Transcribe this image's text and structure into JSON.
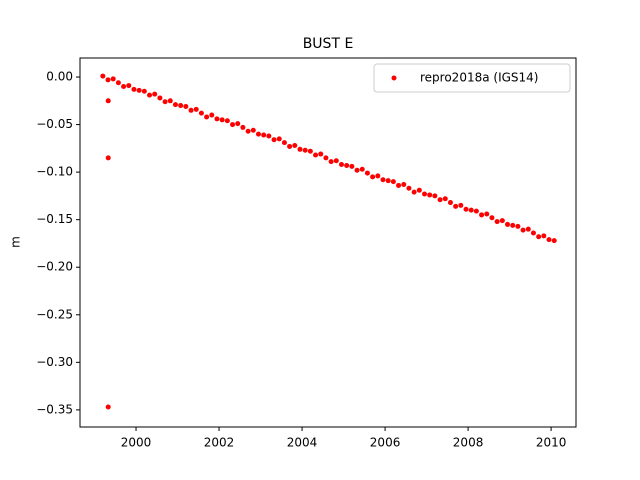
{
  "chart_data": {
    "type": "scatter",
    "title": "BUST E",
    "y_label": "m",
    "legend_position": "upper right",
    "series": [
      {
        "name": "repro2018a (IGS14)",
        "color": "#ff0000",
        "x": [
          1999.2,
          1999.325,
          1999.45,
          1999.575,
          1999.7,
          1999.825,
          1999.95,
          2000.075,
          2000.2,
          2000.325,
          2000.45,
          2000.575,
          2000.7,
          2000.825,
          2000.95,
          2001.075,
          2001.2,
          2001.325,
          2001.45,
          2001.575,
          2001.7,
          2001.825,
          2001.95,
          2002.075,
          2002.2,
          2002.325,
          2002.45,
          2002.575,
          2002.7,
          2002.825,
          2002.95,
          2003.075,
          2003.2,
          2003.325,
          2003.45,
          2003.575,
          2003.7,
          2003.825,
          2003.95,
          2004.075,
          2004.2,
          2004.325,
          2004.45,
          2004.575,
          2004.7,
          2004.825,
          2004.95,
          2005.075,
          2005.2,
          2005.325,
          2005.45,
          2005.575,
          2005.7,
          2005.825,
          2005.95,
          2006.075,
          2006.2,
          2006.325,
          2006.45,
          2006.575,
          2006.7,
          2006.825,
          2006.95,
          2007.075,
          2007.2,
          2007.325,
          2007.45,
          2007.575,
          2007.7,
          2007.825,
          2007.95,
          2008.075,
          2008.2,
          2008.325,
          2008.45,
          2008.575,
          2008.7,
          2008.825,
          2008.95,
          2009.075,
          2009.2,
          2009.325,
          2009.45,
          2009.575,
          2009.7,
          2009.825,
          2009.95,
          2010.075,
          1999.33,
          1999.33,
          1999.33
        ],
        "values": [
          0.001,
          -0.003,
          -0.002,
          -0.006,
          -0.01,
          -0.009,
          -0.013,
          -0.014,
          -0.015,
          -0.019,
          -0.018,
          -0.022,
          -0.026,
          -0.025,
          -0.029,
          -0.03,
          -0.031,
          -0.035,
          -0.034,
          -0.038,
          -0.042,
          -0.04,
          -0.044,
          -0.045,
          -0.046,
          -0.05,
          -0.049,
          -0.053,
          -0.057,
          -0.056,
          -0.06,
          -0.061,
          -0.062,
          -0.066,
          -0.065,
          -0.069,
          -0.073,
          -0.072,
          -0.076,
          -0.077,
          -0.078,
          -0.082,
          -0.081,
          -0.085,
          -0.089,
          -0.088,
          -0.092,
          -0.093,
          -0.094,
          -0.098,
          -0.097,
          -0.101,
          -0.105,
          -0.104,
          -0.108,
          -0.109,
          -0.11,
          -0.114,
          -0.113,
          -0.117,
          -0.121,
          -0.119,
          -0.123,
          -0.124,
          -0.125,
          -0.129,
          -0.128,
          -0.132,
          -0.136,
          -0.135,
          -0.139,
          -0.14,
          -0.141,
          -0.145,
          -0.144,
          -0.148,
          -0.152,
          -0.151,
          -0.155,
          -0.156,
          -0.157,
          -0.161,
          -0.16,
          -0.164,
          -0.168,
          -0.167,
          -0.171,
          -0.172,
          -0.025,
          -0.085,
          -0.347
        ]
      }
    ],
    "xlim": [
      1998.65,
      2010.6
    ],
    "xticks": [
      2000,
      2002,
      2004,
      2006,
      2008,
      2010
    ],
    "ylim": [
      -0.368,
      0.02
    ],
    "yticks": [
      {
        "value": 0,
        "label": "0.00"
      },
      {
        "value": -0.05,
        "label": "−0.05"
      },
      {
        "value": -0.1,
        "label": "−0.10"
      },
      {
        "value": -0.15,
        "label": "−0.15"
      },
      {
        "value": -0.2,
        "label": "−0.20"
      },
      {
        "value": -0.25,
        "label": "−0.25"
      },
      {
        "value": -0.3,
        "label": "−0.30"
      },
      {
        "value": -0.35,
        "label": "−0.35"
      }
    ],
    "grid": false
  }
}
